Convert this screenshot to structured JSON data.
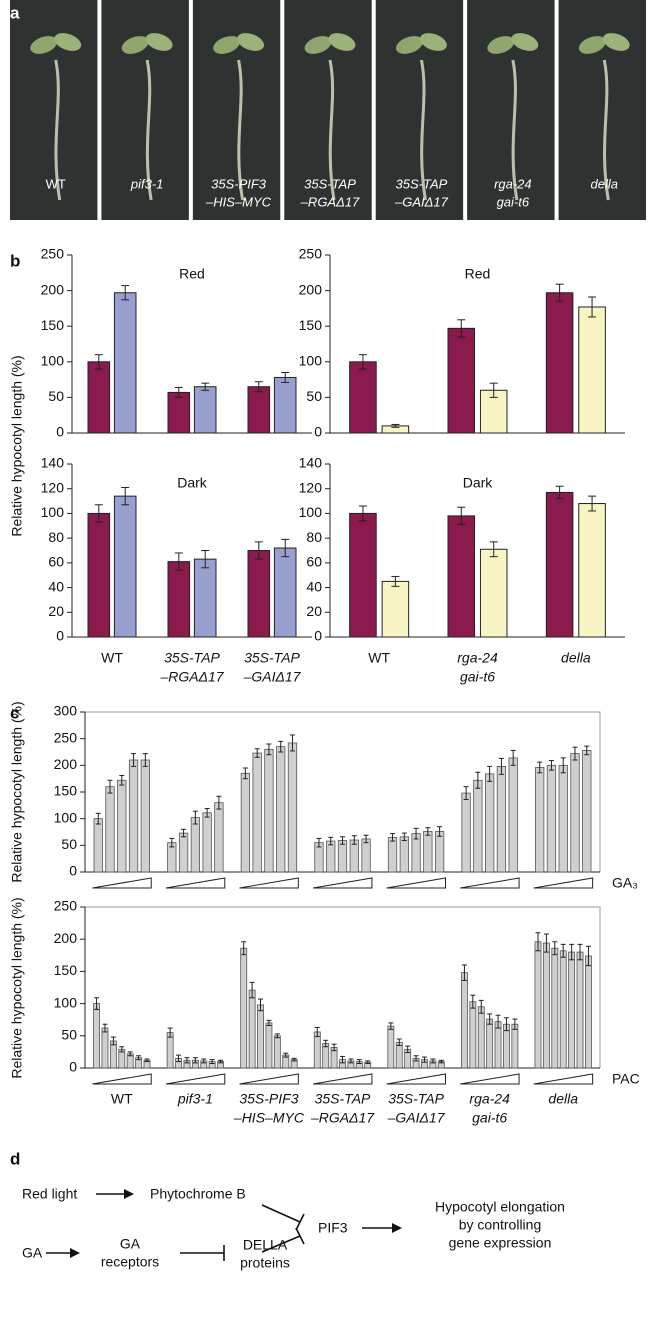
{
  "panel_letters": [
    "a",
    "b",
    "c",
    "d"
  ],
  "photo": {
    "labels": [
      [
        "WT"
      ],
      [
        "pif3-1"
      ],
      [
        "35S-PIF3",
        "–HIS–MYC"
      ],
      [
        "35S-TAP",
        "–RGAΔ17"
      ],
      [
        "35S-TAP",
        "–GAIΔ17"
      ],
      [
        "rga-24",
        "gai-t6"
      ],
      [
        "della"
      ]
    ]
  },
  "chart_data": [
    {
      "type": "bar",
      "title": "Red",
      "ylabel": "Relative hypocotyl length (%)",
      "categories": [
        null,
        null,
        null
      ],
      "series": [
        {
          "color": "#8b1a4f",
          "values": [
            100,
            57,
            65
          ],
          "errors": [
            10,
            7,
            7
          ]
        },
        {
          "color": "#98a0d0",
          "values": [
            197,
            65,
            78
          ],
          "errors": [
            10,
            5,
            7
          ]
        }
      ],
      "ylim": [
        0,
        250
      ],
      "yticks": [
        0,
        50,
        100,
        150,
        200,
        250
      ]
    },
    {
      "type": "bar",
      "title": "Red",
      "categories": [
        null,
        null,
        null
      ],
      "series": [
        {
          "color": "#8b1a4f",
          "values": [
            100,
            147,
            197
          ],
          "errors": [
            10,
            12,
            12
          ]
        },
        {
          "color": "#f8f4c4",
          "values": [
            10,
            60,
            177
          ],
          "errors": [
            2,
            10,
            14
          ]
        }
      ],
      "ylim": [
        0,
        250
      ],
      "yticks": [
        0,
        50,
        100,
        150,
        200,
        250
      ]
    },
    {
      "type": "bar",
      "title": "Dark",
      "categories": [
        [
          "WT"
        ],
        [
          "35S-TAP",
          "–RGAΔ17"
        ],
        [
          "35S-TAP",
          "–GAIΔ17"
        ]
      ],
      "series": [
        {
          "color": "#8b1a4f",
          "values": [
            100,
            61,
            70
          ],
          "errors": [
            7,
            7,
            7
          ]
        },
        {
          "color": "#98a0d0",
          "values": [
            114,
            63,
            72
          ],
          "errors": [
            7,
            7,
            7
          ]
        }
      ],
      "ylim": [
        0,
        140
      ],
      "yticks": [
        0,
        20,
        40,
        60,
        80,
        100,
        120,
        140
      ]
    },
    {
      "type": "bar",
      "title": "Dark",
      "categories": [
        [
          "WT"
        ],
        [
          "rga-24",
          "gai-t6"
        ],
        [
          "della"
        ]
      ],
      "series": [
        {
          "color": "#8b1a4f",
          "values": [
            100,
            98,
            117
          ],
          "errors": [
            6,
            7,
            5
          ]
        },
        {
          "color": "#f8f4c4",
          "values": [
            45,
            71,
            108
          ],
          "errors": [
            4,
            6,
            6
          ]
        }
      ],
      "ylim": [
        0,
        140
      ],
      "yticks": [
        0,
        20,
        40,
        60,
        80,
        100,
        120,
        140
      ]
    },
    {
      "type": "dose-bar",
      "ylabel": "Relative hypocotyl length (%)",
      "xlabel": "GA₃",
      "color": "#cfcfcf",
      "categories": [
        null,
        null,
        null,
        null,
        null,
        null,
        null
      ],
      "values": [
        [
          100,
          160,
          172,
          210,
          210
        ],
        [
          55,
          73,
          102,
          111,
          130
        ],
        [
          185,
          223,
          230,
          235,
          242
        ],
        [
          55,
          58,
          59,
          60,
          62
        ],
        [
          65,
          66,
          72,
          76,
          76
        ],
        [
          148,
          172,
          184,
          198,
          214
        ],
        [
          196,
          200,
          200,
          222,
          228
        ]
      ],
      "errors": [
        [
          10,
          12,
          9,
          12,
          12
        ],
        [
          8,
          7,
          12,
          8,
          12
        ],
        [
          10,
          8,
          10,
          10,
          15
        ],
        [
          8,
          7,
          7,
          8,
          7
        ],
        [
          7,
          7,
          10,
          7,
          9
        ],
        [
          12,
          15,
          14,
          15,
          14
        ],
        [
          10,
          9,
          14,
          12,
          8
        ]
      ],
      "ylim": [
        0,
        300
      ],
      "yticks": [
        0,
        50,
        100,
        150,
        200,
        250,
        300
      ]
    },
    {
      "type": "dose-bar",
      "ylabel": "Relative hypocotyl length (%)",
      "xlabel": "PAC",
      "color": "#cfcfcf",
      "categories": [
        [
          "WT"
        ],
        [
          "pif3-1"
        ],
        [
          "35S-PIF3",
          "–HIS–MYC"
        ],
        [
          "35S-TAP",
          "–RGAΔ17"
        ],
        [
          "35S-TAP",
          "–GAIΔ17"
        ],
        [
          "rga-24",
          "gai-t6"
        ],
        [
          "della"
        ]
      ],
      "values": [
        [
          100,
          62,
          42,
          29,
          22,
          16,
          12
        ],
        [
          55,
          15,
          12,
          12,
          11,
          10,
          10
        ],
        [
          186,
          121,
          98,
          70,
          50,
          20,
          13
        ],
        [
          56,
          38,
          32,
          13,
          11,
          10,
          9
        ],
        [
          65,
          40,
          29,
          15,
          13,
          11,
          10
        ],
        [
          148,
          103,
          95,
          76,
          72,
          68,
          68
        ],
        [
          196,
          194,
          186,
          182,
          180,
          180,
          174
        ]
      ],
      "errors": [
        [
          9,
          6,
          6,
          4,
          3,
          3,
          2
        ],
        [
          7,
          5,
          4,
          4,
          3,
          3,
          2
        ],
        [
          10,
          12,
          9,
          4,
          3,
          3,
          2
        ],
        [
          7,
          5,
          5,
          5,
          3,
          3,
          2
        ],
        [
          5,
          5,
          5,
          4,
          4,
          3,
          2
        ],
        [
          12,
          10,
          10,
          8,
          10,
          10,
          8
        ],
        [
          14,
          14,
          10,
          10,
          12,
          12,
          15
        ]
      ],
      "ylim": [
        0,
        250
      ],
      "yticks": [
        0,
        50,
        100,
        150,
        200,
        250
      ]
    }
  ],
  "diagram": {
    "red_light": "Red light",
    "phytochrome": "Phytochrome B",
    "pif3": "PIF3",
    "output": [
      "Hypocotyl elongation",
      "by controlling",
      "gene expression"
    ],
    "ga": "GA",
    "receptors": [
      "GA",
      "receptors"
    ],
    "della": [
      "DELLA",
      "proteins"
    ]
  }
}
